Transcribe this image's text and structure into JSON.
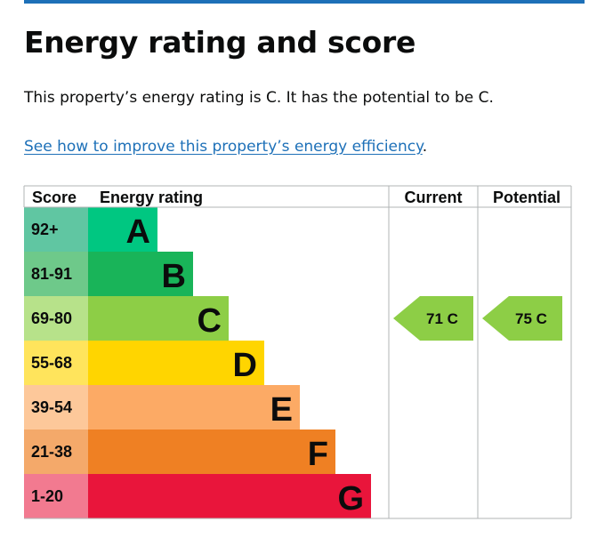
{
  "page": {
    "title": "Energy rating and score",
    "summary": "This property’s energy rating is C. It has the potential to be C.",
    "link_text": "See how to improve this property’s energy efficiency",
    "link_trailing": "."
  },
  "table": {
    "headers": {
      "score": "Score",
      "rating": "Energy rating",
      "current": "Current",
      "potential": "Potential"
    }
  },
  "bands": [
    {
      "score": "92+",
      "letter": "A",
      "color": "#008054",
      "score_bg": "#60c6a2",
      "bar": "#00c781"
    },
    {
      "score": "81-91",
      "letter": "B",
      "color": "#19b459",
      "score_bg": "#6ec98a",
      "bar": "#19b459"
    },
    {
      "score": "69-80",
      "letter": "C",
      "color": "#8dce46",
      "score_bg": "#b7e28a",
      "bar": "#8dce46"
    },
    {
      "score": "55-68",
      "letter": "D",
      "color": "#ffd500",
      "score_bg": "#ffe45c",
      "bar": "#ffd500"
    },
    {
      "score": "39-54",
      "letter": "E",
      "color": "#fcaa65",
      "score_bg": "#fdc89a",
      "bar": "#fcaa65"
    },
    {
      "score": "21-38",
      "letter": "F",
      "color": "#ef8023",
      "score_bg": "#f4a96a",
      "bar": "#ef8023"
    },
    {
      "score": "1-20",
      "letter": "G",
      "color": "#e9153b",
      "score_bg": "#f27a90",
      "bar": "#e9153b"
    }
  ],
  "current": {
    "score": 71,
    "letter": "C",
    "label": "71  C",
    "color": "#8dce46"
  },
  "potential": {
    "score": 75,
    "letter": "C",
    "label": "75  C",
    "color": "#8dce46"
  },
  "colors": {
    "link": "#1d70b8",
    "rule": "#1d70b8",
    "grid": "#b1b4b6"
  }
}
